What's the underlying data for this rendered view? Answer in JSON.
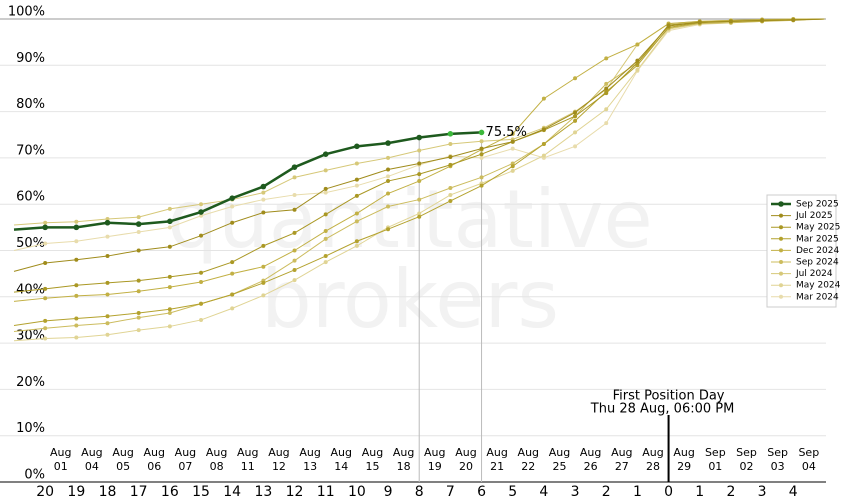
{
  "chart_data": {
    "type": "line",
    "watermark": [
      "quantitative",
      "brokers"
    ],
    "categories": [
      null,
      "Aug 01",
      "Aug 04",
      "Aug 05",
      "Aug 06",
      "Aug 07",
      "Aug 08",
      "Aug 11",
      "Aug 12",
      "Aug 13",
      "Aug 14",
      "Aug 15",
      "Aug 18",
      "Aug 19",
      "Aug 20",
      "Aug 21",
      "Aug 22",
      "Aug 25",
      "Aug 26",
      "Aug 27",
      "Aug 28",
      "Aug 29",
      "Sep 01",
      "Sep 02",
      "Sep 03",
      "Sep 04",
      null
    ],
    "countdown": [
      null,
      "20",
      "19",
      "18",
      "17",
      "16",
      "15",
      "14",
      "13",
      "12",
      "11",
      "10",
      "9",
      "8",
      "7",
      "6",
      "5",
      "4",
      "3",
      "2",
      "1",
      "0",
      "1",
      "2",
      "3",
      "4",
      null
    ],
    "ylim": [
      0,
      100
    ],
    "yticks": [
      {
        "value": 0,
        "label": "0%"
      },
      {
        "value": 10,
        "label": "10%"
      },
      {
        "value": 20,
        "label": "20%"
      },
      {
        "value": 30,
        "label": "30%"
      },
      {
        "value": 40,
        "label": "40%"
      },
      {
        "value": 50,
        "label": "50%"
      },
      {
        "value": 60,
        "label": "60%"
      },
      {
        "value": 70,
        "label": "70%"
      },
      {
        "value": 80,
        "label": "80%"
      },
      {
        "value": 90,
        "label": "90%"
      },
      {
        "value": 100,
        "label": "100%"
      }
    ],
    "grid": true,
    "legend": "right",
    "annotation": {
      "title": "First Position Day",
      "subtitle": "Thu 28 Aug, 06:00 PM"
    },
    "series": [
      {
        "name": "Sep 2025",
        "color": "#1e5a1e",
        "values": [
          54.5,
          55,
          55,
          56,
          55.7,
          56.3,
          58.3,
          61.3,
          63.8,
          68,
          70.8,
          72.5,
          73.2,
          74.4,
          75.2,
          75.5,
          null,
          null,
          null,
          null,
          null,
          null,
          null,
          null,
          null,
          null,
          null
        ],
        "last_label": "75.5%"
      },
      {
        "name": "Jul 2025",
        "color": "#a08c1c",
        "values": [
          45.5,
          47.3,
          48,
          48.8,
          50,
          50.8,
          53.2,
          56,
          58.2,
          58.8,
          63.3,
          65.3,
          67.5,
          68.8,
          70.2,
          72,
          73.5,
          76.2,
          79.8,
          85,
          91,
          98.5,
          99.3,
          99.5,
          99.7,
          99.8,
          100
        ]
      },
      {
        "name": "May 2025",
        "color": "#aa9824",
        "values": [
          41,
          41.7,
          42.5,
          43,
          43.5,
          44.3,
          45.2,
          47.5,
          51,
          53.8,
          57.8,
          61.8,
          65,
          66.5,
          68.5,
          70.8,
          73.5,
          76,
          79,
          84,
          90.5,
          98.7,
          99.3,
          99.5,
          99.7,
          99.8,
          100
        ]
      },
      {
        "name": "Mar 2025",
        "color": "#b4a22e",
        "values": [
          33.8,
          34.8,
          35.3,
          35.8,
          36.5,
          37.3,
          38.5,
          40.5,
          43,
          45.8,
          48.8,
          52,
          54.6,
          57.3,
          60.7,
          64,
          68.2,
          73,
          78,
          84.3,
          90,
          98.2,
          99.2,
          99.5,
          99.6,
          99.8,
          100
        ]
      },
      {
        "name": "Dec 2024",
        "color": "#c2b044",
        "values": [
          39,
          39.7,
          40.2,
          40.5,
          41.2,
          42.1,
          43.2,
          45,
          46.5,
          50,
          54.2,
          58,
          62.3,
          65,
          68.2,
          71.8,
          75.2,
          82.8,
          87.2,
          91.5,
          94.5,
          99,
          99.5,
          99.7,
          99.9,
          100,
          100
        ]
      },
      {
        "name": "Sep 2024",
        "color": "#ccbc5e",
        "values": [
          32.5,
          33.2,
          33.8,
          34.3,
          35.5,
          36.5,
          38.5,
          40.5,
          43.5,
          47.8,
          52.5,
          56.3,
          59.5,
          61,
          63.5,
          65.8,
          68.8,
          73,
          79,
          86,
          90.5,
          98,
          99,
          99.2,
          99.5,
          99.7,
          100
        ]
      },
      {
        "name": "Jul 2024",
        "color": "#d6c878",
        "values": [
          55.5,
          56,
          56.2,
          56.8,
          57.2,
          59,
          60,
          61,
          62.5,
          65.8,
          67.3,
          68.8,
          70,
          71.6,
          73,
          73.6,
          74,
          76.5,
          80,
          84.8,
          94.5,
          99,
          99.5,
          99.7,
          99.8,
          99.9,
          100
        ]
      },
      {
        "name": "May 2024",
        "color": "#e0d494",
        "values": [
          30.5,
          31,
          31.2,
          31.8,
          32.8,
          33.6,
          35,
          37.5,
          40.3,
          43.6,
          47.5,
          51,
          55,
          58,
          62,
          64.5,
          67.2,
          70.5,
          75.5,
          80.5,
          89,
          97.8,
          99,
          99.3,
          99.6,
          99.8,
          100
        ]
      },
      {
        "name": "Mar 2024",
        "color": "#e8dcac",
        "values": [
          50,
          51.5,
          52,
          53,
          54,
          55,
          57.5,
          59.5,
          61,
          62,
          62.5,
          64,
          66,
          68.5,
          70.4,
          70,
          72,
          70,
          72.5,
          77.5,
          88.8,
          97.5,
          98.8,
          99.2,
          99.5,
          99.8,
          100
        ]
      }
    ]
  }
}
